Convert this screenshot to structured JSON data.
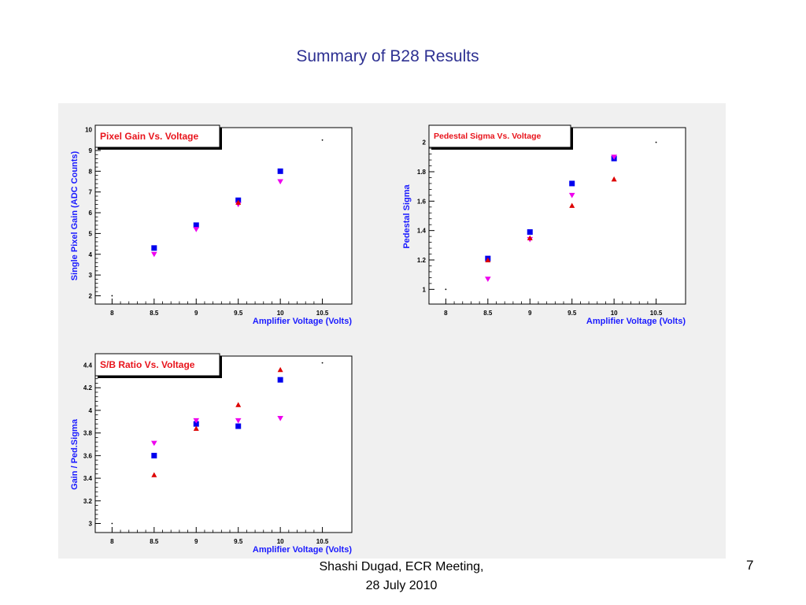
{
  "slide": {
    "title": "Summary of B28 Results",
    "footer_line1": "Shashi Dugad, ECR Meeting,",
    "footer_line2": "28 July 2010",
    "page_number": "7"
  },
  "colors": {
    "title": "#2e3192",
    "axis_label": "#1a1aff",
    "chart_title": "#e8141c",
    "series_square": "#0000ee",
    "series_triangle_down": "#ee00ee",
    "series_triangle_up": "#dd0000"
  },
  "chart_data": [
    {
      "type": "scatter",
      "title": "Pixel Gain Vs. Voltage",
      "xlabel": "Amplifier Voltage (Volts)",
      "ylabel": "Single Pixel Gain (ADC Counts)",
      "xlim": [
        7.8,
        10.85
      ],
      "ylim": [
        1.6,
        10.1
      ],
      "xticks": [
        "8",
        "8.5",
        "9",
        "9.5",
        "10",
        "10.5"
      ],
      "yticks": [
        "2",
        "3",
        "4",
        "5",
        "6",
        "7",
        "8",
        "9",
        "10"
      ],
      "grid": false,
      "corner_dots": [
        [
          8.0,
          2.0
        ],
        [
          10.5,
          9.5
        ]
      ],
      "series": [
        {
          "marker": "square",
          "color": "#0000ee",
          "x": [
            8.5,
            9.0,
            9.5,
            10.0
          ],
          "y": [
            4.3,
            5.4,
            6.6,
            8.0
          ]
        },
        {
          "marker": "triangle-down",
          "color": "#ee00ee",
          "x": [
            8.5,
            9.0,
            9.5,
            10.0
          ],
          "y": [
            4.0,
            5.2,
            6.4,
            7.5
          ]
        },
        {
          "marker": "triangle-up",
          "color": "#dd0000",
          "x": [
            9.5
          ],
          "y": [
            6.5
          ]
        }
      ]
    },
    {
      "type": "scatter",
      "title": "Pedestal Sigma Vs. Voltage",
      "xlabel": "Amplifier Voltage (Volts)",
      "ylabel": "Pedestal Sigma",
      "xlim": [
        7.8,
        10.85
      ],
      "ylim": [
        0.9,
        2.1
      ],
      "xticks": [
        "8",
        "8.5",
        "9",
        "9.5",
        "10",
        "10.5"
      ],
      "yticks": [
        "1",
        "1.2",
        "1.4",
        "1.6",
        "1.8",
        "2"
      ],
      "grid": false,
      "corner_dots": [
        [
          8.0,
          1.0
        ],
        [
          10.5,
          2.0
        ]
      ],
      "series": [
        {
          "marker": "square",
          "color": "#0000ee",
          "x": [
            8.5,
            9.0,
            9.5,
            10.0
          ],
          "y": [
            1.21,
            1.39,
            1.72,
            1.89
          ]
        },
        {
          "marker": "triangle-down",
          "color": "#ee00ee",
          "x": [
            8.5,
            9.0,
            9.5,
            10.0
          ],
          "y": [
            1.07,
            1.34,
            1.64,
            1.9
          ]
        },
        {
          "marker": "triangle-up",
          "color": "#dd0000",
          "x": [
            8.5,
            9.0,
            9.5,
            10.0
          ],
          "y": [
            1.2,
            1.35,
            1.57,
            1.75
          ]
        }
      ]
    },
    {
      "type": "scatter",
      "title": "S/B Ratio Vs. Voltage",
      "xlabel": "Amplifier Voltage (Volts)",
      "ylabel": "Gain / Ped.Sigma",
      "xlim": [
        7.8,
        10.85
      ],
      "ylim": [
        2.92,
        4.48
      ],
      "xticks": [
        "8",
        "8.5",
        "9",
        "9.5",
        "10",
        "10.5"
      ],
      "yticks": [
        "3",
        "3.2",
        "3.4",
        "3.6",
        "3.8",
        "4",
        "4.2",
        "4.4"
      ],
      "grid": false,
      "corner_dots": [
        [
          8.0,
          3.0
        ],
        [
          10.5,
          4.42
        ]
      ],
      "series": [
        {
          "marker": "square",
          "color": "#0000ee",
          "x": [
            8.5,
            9.0,
            9.5,
            10.0
          ],
          "y": [
            3.6,
            3.88,
            3.86,
            4.27
          ]
        },
        {
          "marker": "triangle-down",
          "color": "#ee00ee",
          "x": [
            8.5,
            9.0,
            9.5,
            10.0
          ],
          "y": [
            3.71,
            3.91,
            3.91,
            3.93
          ]
        },
        {
          "marker": "triangle-up",
          "color": "#dd0000",
          "x": [
            8.5,
            9.0,
            9.5,
            10.0
          ],
          "y": [
            3.43,
            3.84,
            4.05,
            4.36
          ]
        }
      ]
    }
  ]
}
